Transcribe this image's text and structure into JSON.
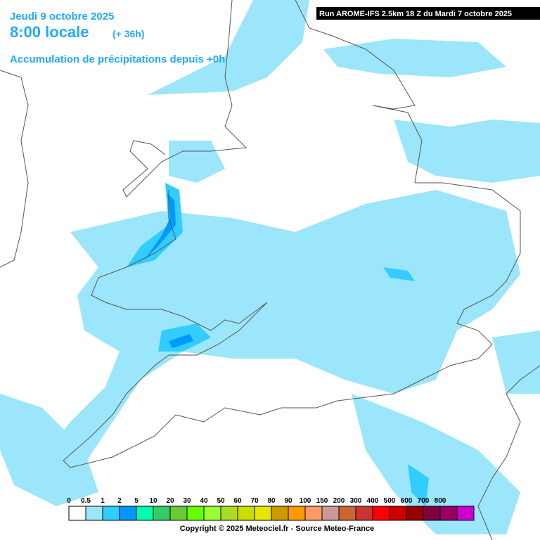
{
  "header": {
    "date": "Jeudi 9 octobre 2025",
    "time": "8:00 locale",
    "lead": "(+ 36h)",
    "product": "Accumulation de précipitations depuis +0h",
    "run": "Run AROME-IFS 2.5km 18 Z du Mardi 7 octobre 2025"
  },
  "legend": {
    "labels": [
      "0",
      "0.5",
      "1",
      "2",
      "5",
      "10",
      "20",
      "30",
      "40",
      "50",
      "60",
      "70",
      "80",
      "90",
      "100",
      "150",
      "200",
      "300",
      "400",
      "500",
      "600",
      "700",
      "800"
    ],
    "colors": [
      "#ffffff",
      "#9be6fa",
      "#33ccff",
      "#0099ff",
      "#00ffaa",
      "#33cc66",
      "#66cc33",
      "#66ff00",
      "#99ff33",
      "#aadd22",
      "#ccdd00",
      "#e6e600",
      "#cc9900",
      "#ff9900",
      "#ff9966",
      "#cc9999",
      "#cc6633",
      "#cc3333",
      "#ff0000",
      "#cc0000",
      "#990000",
      "#800040",
      "#990066",
      "#cc00cc"
    ]
  },
  "footer": {
    "copyright": "Copyright © 2025 Meteociel.fr - Source Meteo-France"
  }
}
